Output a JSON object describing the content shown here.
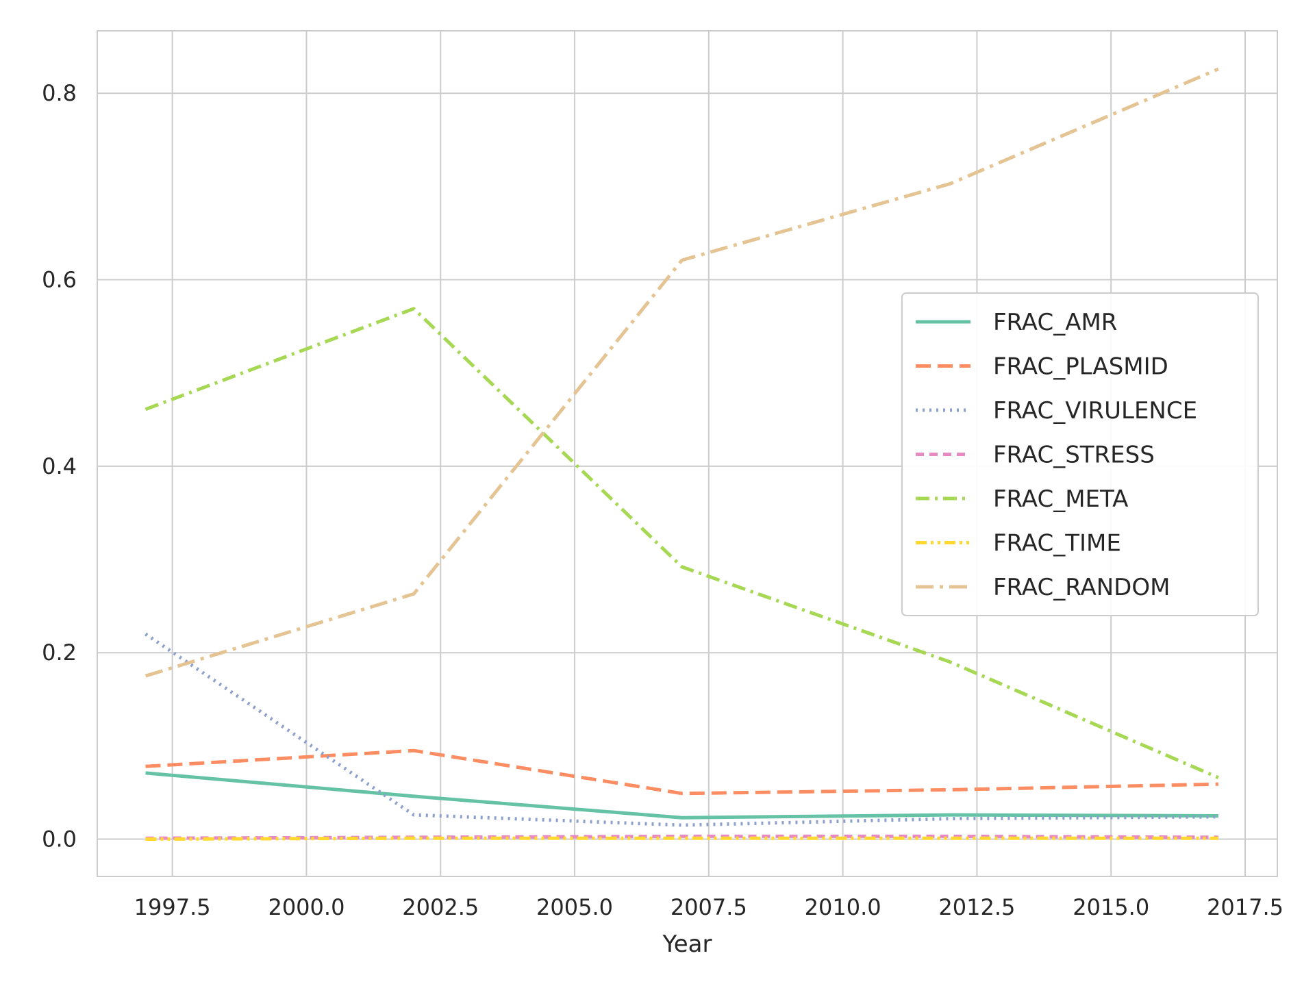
{
  "chart_data": {
    "type": "line",
    "title": "",
    "xlabel": "Year",
    "ylabel": "",
    "xlim": [
      1996.1,
      2018.1
    ],
    "ylim": [
      -0.04,
      0.867
    ],
    "xticks": [
      1997.5,
      2000.0,
      2002.5,
      2005.0,
      2007.5,
      2010.0,
      2012.5,
      2015.0,
      2017.5
    ],
    "xtick_labels": [
      "1997.5",
      "2000.0",
      "2002.5",
      "2005.0",
      "2007.5",
      "2010.0",
      "2012.5",
      "2015.0",
      "2017.5"
    ],
    "yticks": [
      0.0,
      0.2,
      0.4,
      0.6,
      0.8
    ],
    "ytick_labels": [
      "0.0",
      "0.2",
      "0.4",
      "0.6",
      "0.8"
    ],
    "grid": true,
    "legend_position": "center-right",
    "x": [
      1997,
      2002,
      2007,
      2012,
      2017
    ],
    "series": [
      {
        "name": "FRAC_AMR",
        "color": "#66c2a5",
        "style": "solid",
        "values": [
          0.071,
          0.046,
          0.023,
          0.026,
          0.025
        ]
      },
      {
        "name": "FRAC_PLASMID",
        "color": "#fc8d62",
        "style": "dashed",
        "values": [
          0.078,
          0.095,
          0.049,
          0.053,
          0.059
        ]
      },
      {
        "name": "FRAC_VIRULENCE",
        "color": "#8da0cb",
        "style": "dotted",
        "values": [
          0.22,
          0.026,
          0.015,
          0.022,
          0.024
        ]
      },
      {
        "name": "FRAC_STRESS",
        "color": "#e78ac3",
        "style": "dashed-short",
        "values": [
          0.001,
          0.002,
          0.003,
          0.003,
          0.002
        ]
      },
      {
        "name": "FRAC_META",
        "color": "#a6d854",
        "style": "dashdot",
        "values": [
          0.461,
          0.569,
          0.292,
          0.19,
          0.066
        ]
      },
      {
        "name": "FRAC_TIME",
        "color": "#ffd92f",
        "style": "dashdotdot",
        "values": [
          0.0,
          0.001,
          0.001,
          0.001,
          0.001
        ]
      },
      {
        "name": "FRAC_RANDOM",
        "color": "#e5c494",
        "style": "dashdot-long",
        "values": [
          0.175,
          0.263,
          0.621,
          0.703,
          0.826
        ]
      }
    ]
  }
}
